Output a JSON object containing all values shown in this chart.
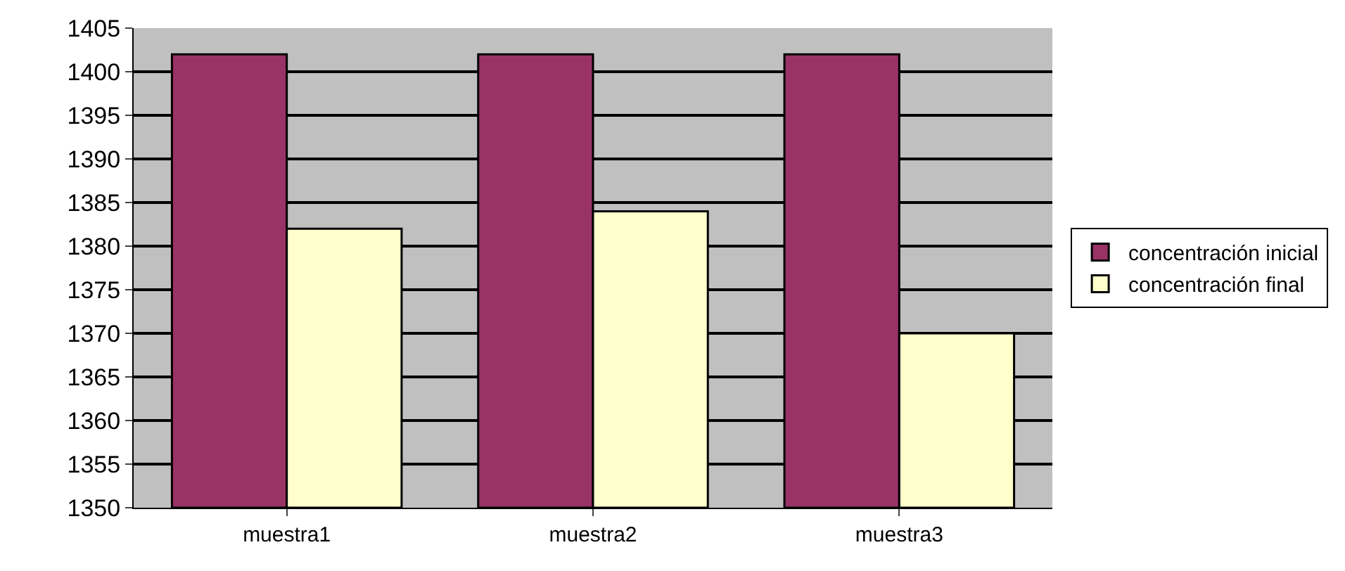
{
  "chart_data": {
    "type": "bar",
    "categories": [
      "muestra1",
      "muestra2",
      "muestra3"
    ],
    "series": [
      {
        "name": "concentración inicial",
        "color": "#993366",
        "values": [
          1402,
          1402,
          1402
        ]
      },
      {
        "name": "concentración final",
        "color": "#ffffcc",
        "values": [
          1382,
          1384,
          1370
        ]
      }
    ],
    "ylim": [
      1350,
      1405
    ],
    "yticks": [
      1350,
      1355,
      1360,
      1365,
      1370,
      1375,
      1380,
      1385,
      1390,
      1395,
      1400,
      1405
    ],
    "grid": "y",
    "legend": "right"
  }
}
